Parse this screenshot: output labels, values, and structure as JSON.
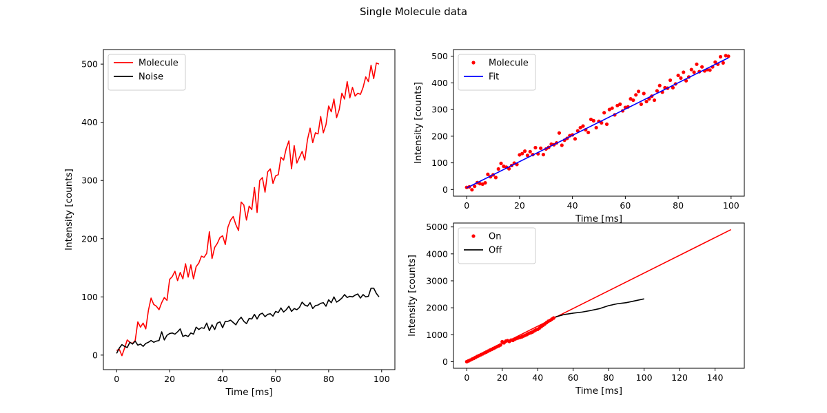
{
  "figure_title": "Single Molecule data",
  "chart_data": [
    {
      "type": "line",
      "xlabel": "Time [ms]",
      "ylabel": "Intensity [counts]",
      "xlim": [
        -5,
        105
      ],
      "ylim": [
        -25,
        525
      ],
      "xticks": [
        0,
        20,
        40,
        60,
        80,
        100
      ],
      "yticks": [
        0,
        100,
        200,
        300,
        400,
        500
      ],
      "legend": "top-left",
      "series": [
        {
          "name": "Molecule",
          "color": "#ff0000",
          "style": "line",
          "x": [
            0,
            1,
            2,
            3,
            4,
            5,
            6,
            7,
            8,
            9,
            10,
            11,
            12,
            13,
            14,
            15,
            16,
            17,
            18,
            19,
            20,
            21,
            22,
            23,
            24,
            25,
            26,
            27,
            28,
            29,
            30,
            31,
            32,
            33,
            34,
            35,
            36,
            37,
            38,
            39,
            40,
            41,
            42,
            43,
            44,
            45,
            46,
            47,
            48,
            49,
            50,
            51,
            52,
            53,
            54,
            55,
            56,
            57,
            58,
            59,
            60,
            61,
            62,
            63,
            64,
            65,
            66,
            67,
            68,
            69,
            70,
            71,
            72,
            73,
            74,
            75,
            76,
            77,
            78,
            79,
            80,
            81,
            82,
            83,
            84,
            85,
            86,
            87,
            88,
            89,
            90,
            91,
            92,
            93,
            94,
            95,
            96,
            97,
            98,
            99
          ],
          "y": [
            8,
            10,
            -1,
            12,
            26,
            22,
            20,
            25,
            57,
            48,
            55,
            45,
            77,
            98,
            87,
            84,
            78,
            90,
            99,
            94,
            130,
            135,
            144,
            128,
            142,
            131,
            157,
            134,
            155,
            131,
            152,
            158,
            170,
            168,
            175,
            212,
            166,
            185,
            192,
            202,
            205,
            190,
            220,
            232,
            238,
            224,
            214,
            263,
            258,
            232,
            256,
            250,
            288,
            245,
            300,
            305,
            280,
            315,
            320,
            295,
            308,
            310,
            340,
            335,
            355,
            368,
            320,
            360,
            330,
            340,
            350,
            335,
            370,
            390,
            365,
            382,
            380,
            410,
            382,
            396,
            428,
            418,
            440,
            408,
            422,
            450,
            440,
            470,
            442,
            460,
            445,
            450,
            448,
            460,
            478,
            470,
            498,
            475,
            502,
            500
          ]
        },
        {
          "name": "Noise",
          "color": "#000000",
          "style": "line",
          "x": [
            0,
            1,
            2,
            3,
            4,
            5,
            6,
            7,
            8,
            9,
            10,
            11,
            12,
            13,
            14,
            15,
            16,
            17,
            18,
            19,
            20,
            21,
            22,
            23,
            24,
            25,
            26,
            27,
            28,
            29,
            30,
            31,
            32,
            33,
            34,
            35,
            36,
            37,
            38,
            39,
            40,
            41,
            42,
            43,
            44,
            45,
            46,
            47,
            48,
            49,
            50,
            51,
            52,
            53,
            54,
            55,
            56,
            57,
            58,
            59,
            60,
            61,
            62,
            63,
            64,
            65,
            66,
            67,
            68,
            69,
            70,
            71,
            72,
            73,
            74,
            75,
            76,
            77,
            78,
            79,
            80,
            81,
            82,
            83,
            84,
            85,
            86,
            87,
            88,
            89,
            90,
            91,
            92,
            93,
            94,
            95,
            96,
            97,
            98,
            99
          ],
          "y": [
            3,
            12,
            18,
            15,
            13,
            22,
            19,
            24,
            17,
            19,
            15,
            20,
            22,
            25,
            22,
            24,
            25,
            40,
            26,
            34,
            37,
            38,
            36,
            40,
            45,
            32,
            34,
            32,
            38,
            36,
            48,
            44,
            47,
            46,
            55,
            42,
            52,
            44,
            55,
            57,
            47,
            58,
            58,
            60,
            56,
            52,
            60,
            65,
            58,
            54,
            63,
            62,
            70,
            62,
            70,
            72,
            66,
            70,
            71,
            67,
            75,
            73,
            81,
            74,
            78,
            84,
            75,
            80,
            78,
            82,
            91,
            86,
            84,
            90,
            80,
            85,
            86,
            89,
            90,
            84,
            95,
            90,
            100,
            91,
            94,
            98,
            104,
            99,
            101,
            100,
            103,
            105,
            98,
            104,
            100,
            101,
            115,
            115,
            106,
            100
          ]
        }
      ]
    },
    {
      "type": "scatter",
      "xlabel": "Time [ms]",
      "ylabel": "Intensity [counts]",
      "xlim": [
        -5,
        105
      ],
      "ylim": [
        -25,
        525
      ],
      "xticks": [
        0,
        20,
        40,
        60,
        80,
        100
      ],
      "yticks": [
        0,
        100,
        200,
        300,
        400,
        500
      ],
      "legend": "top-left",
      "series": [
        {
          "name": "Molecule",
          "color": "#ff0000",
          "style": "dots",
          "x": [
            0,
            1,
            2,
            3,
            4,
            5,
            6,
            7,
            8,
            9,
            10,
            11,
            12,
            13,
            14,
            15,
            16,
            17,
            18,
            19,
            20,
            21,
            22,
            23,
            24,
            25,
            26,
            27,
            28,
            29,
            30,
            31,
            32,
            33,
            34,
            35,
            36,
            37,
            38,
            39,
            40,
            41,
            42,
            43,
            44,
            45,
            46,
            47,
            48,
            49,
            50,
            51,
            52,
            53,
            54,
            55,
            56,
            57,
            58,
            59,
            60,
            61,
            62,
            63,
            64,
            65,
            66,
            67,
            68,
            69,
            70,
            71,
            72,
            73,
            74,
            75,
            76,
            77,
            78,
            79,
            80,
            81,
            82,
            83,
            84,
            85,
            86,
            87,
            88,
            89,
            90,
            91,
            92,
            93,
            94,
            95,
            96,
            97,
            98,
            99
          ],
          "y": [
            8,
            10,
            -1,
            12,
            26,
            22,
            20,
            25,
            57,
            48,
            55,
            45,
            77,
            98,
            87,
            84,
            78,
            90,
            99,
            94,
            130,
            135,
            144,
            128,
            142,
            131,
            157,
            134,
            155,
            131,
            152,
            158,
            170,
            168,
            175,
            212,
            166,
            185,
            192,
            202,
            205,
            190,
            220,
            232,
            238,
            224,
            214,
            263,
            258,
            232,
            256,
            250,
            288,
            245,
            300,
            305,
            280,
            315,
            320,
            295,
            308,
            310,
            340,
            335,
            355,
            368,
            320,
            360,
            330,
            340,
            350,
            335,
            370,
            390,
            365,
            382,
            380,
            410,
            382,
            396,
            428,
            418,
            440,
            408,
            422,
            450,
            440,
            470,
            442,
            460,
            445,
            450,
            448,
            460,
            478,
            470,
            498,
            475,
            502,
            500
          ]
        },
        {
          "name": "Fit",
          "color": "#0000ff",
          "style": "line",
          "x": [
            0,
            99
          ],
          "y": [
            6,
            494
          ]
        }
      ]
    },
    {
      "type": "line",
      "xlabel": "Time [ms]",
      "ylabel": "Intensity [counts]",
      "xlim": [
        -7.5,
        156.5
      ],
      "ylim": [
        -245,
        5145
      ],
      "xticks": [
        0,
        20,
        40,
        60,
        80,
        100,
        120,
        140
      ],
      "yticks": [
        0,
        1000,
        2000,
        3000,
        4000,
        5000
      ],
      "legend": "top-left",
      "series": [
        {
          "name": "On",
          "color": "#ff0000",
          "style": "dots",
          "x": [
            0,
            1,
            2,
            3,
            4,
            5,
            6,
            7,
            8,
            9,
            10,
            11,
            12,
            13,
            14,
            15,
            16,
            17,
            18,
            19,
            20,
            21,
            22,
            23,
            24,
            25,
            26,
            27,
            28,
            29,
            30,
            31,
            32,
            33,
            34,
            35,
            36,
            37,
            38,
            39,
            40,
            41,
            42,
            43,
            44,
            45,
            46,
            47,
            48,
            49
          ],
          "y": [
            0,
            30,
            60,
            95,
            125,
            160,
            195,
            225,
            260,
            290,
            325,
            355,
            390,
            425,
            455,
            490,
            520,
            555,
            585,
            620,
            740,
            700,
            760,
            780,
            750,
            800,
            790,
            830,
            860,
            880,
            900,
            920,
            950,
            980,
            1010,
            1050,
            1070,
            1100,
            1140,
            1180,
            1200,
            1250,
            1300,
            1350,
            1400,
            1450,
            1500,
            1530,
            1580,
            1620
          ]
        },
        {
          "name": "",
          "color": "#ff0000",
          "style": "line",
          "x": [
            0,
            149
          ],
          "y": [
            0,
            4900
          ]
        },
        {
          "name": "Off",
          "color": "#000000",
          "style": "line",
          "x": [
            50,
            55,
            60,
            65,
            70,
            75,
            80,
            85,
            90,
            95,
            100
          ],
          "y": [
            1660,
            1750,
            1800,
            1840,
            1900,
            1970,
            2080,
            2150,
            2190,
            2260,
            2330
          ]
        }
      ]
    }
  ]
}
